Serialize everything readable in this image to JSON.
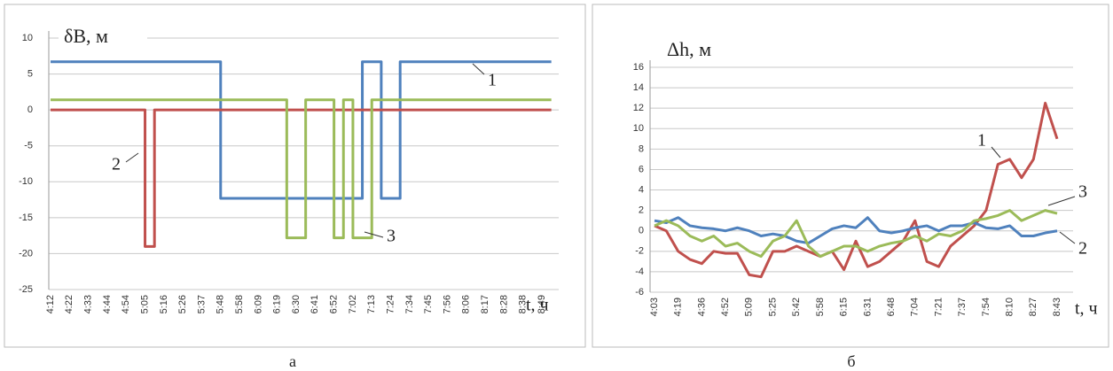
{
  "chart_data": [
    {
      "type": "line",
      "step": true,
      "title": "δB, м",
      "x_label": "t, ч",
      "caption": "а",
      "grid": true,
      "categories": [
        "4:12",
        null,
        "4:22",
        null,
        "4:33",
        null,
        "4:44",
        null,
        "4:54",
        null,
        "5:05",
        null,
        "5:16",
        null,
        "5:26",
        null,
        "5:37",
        null,
        "5:48",
        null,
        "5:58",
        null,
        "6:09",
        null,
        "6:19",
        null,
        "6:30",
        null,
        "6:41",
        null,
        "6:52",
        null,
        "7:02",
        null,
        "7:13",
        null,
        "7:24",
        null,
        "7:34",
        null,
        "7:45",
        null,
        "7:56",
        null,
        "8:06",
        null,
        "8:17",
        null,
        "8:28",
        null,
        "8:38",
        null,
        "8:49"
      ],
      "ylim": [
        -25,
        10
      ],
      "yticks": [
        -25,
        -20,
        -15,
        -10,
        -5,
        0,
        5,
        10
      ],
      "series": [
        {
          "name": "1",
          "color": "#4f81bd",
          "values": [
            6.7,
            6.7,
            6.7,
            6.7,
            6.7,
            6.7,
            6.7,
            6.7,
            6.7,
            6.7,
            6.7,
            6.7,
            6.7,
            6.7,
            6.7,
            6.7,
            6.7,
            6.7,
            -12.3,
            -12.3,
            -12.3,
            -12.3,
            -12.3,
            -12.3,
            -12.3,
            -12.3,
            -12.3,
            -12.3,
            -12.3,
            -12.3,
            -12.3,
            -12.3,
            -12.3,
            6.7,
            6.7,
            -12.3,
            -12.3,
            6.7,
            6.7,
            6.7,
            6.7,
            6.7,
            6.7,
            6.7,
            6.7,
            6.7,
            6.7,
            6.7,
            6.7,
            6.7,
            6.7,
            6.7,
            6.7
          ]
        },
        {
          "name": "2",
          "color": "#c0504d",
          "values": [
            0,
            0,
            0,
            0,
            0,
            0,
            0,
            0,
            0,
            0,
            -19,
            0,
            0,
            0,
            0,
            0,
            0,
            0,
            0,
            0,
            0,
            0,
            0,
            0,
            0,
            0,
            0,
            0,
            0,
            0,
            0,
            0,
            0,
            0,
            0,
            0,
            0,
            0,
            0,
            0,
            0,
            0,
            0,
            0,
            0,
            0,
            0,
            0,
            0,
            0,
            0,
            0,
            0
          ]
        },
        {
          "name": "3",
          "color": "#9bbb59",
          "values": [
            1.4,
            1.4,
            1.4,
            1.4,
            1.4,
            1.4,
            1.4,
            1.4,
            1.4,
            1.4,
            1.4,
            1.4,
            1.4,
            1.4,
            1.4,
            1.4,
            1.4,
            1.4,
            1.4,
            1.4,
            1.4,
            1.4,
            1.4,
            1.4,
            1.4,
            -17.8,
            -17.8,
            1.4,
            1.4,
            1.4,
            -17.8,
            1.4,
            -17.8,
            -17.8,
            1.4,
            1.4,
            1.4,
            1.4,
            1.4,
            1.4,
            1.4,
            1.4,
            1.4,
            1.4,
            1.4,
            1.4,
            1.4,
            1.4,
            1.4,
            1.4,
            1.4,
            1.4,
            1.4
          ]
        }
      ]
    },
    {
      "type": "line",
      "step": false,
      "title": "Δh, м",
      "x_label": "t, ч",
      "caption": "б",
      "grid": true,
      "categories": [
        "4:03",
        null,
        "4:19",
        null,
        "4:36",
        null,
        "4:52",
        null,
        "5:09",
        null,
        "5:25",
        null,
        "5:42",
        null,
        "5:58",
        null,
        "6:15",
        null,
        "6:31",
        null,
        "6:48",
        null,
        "7:04",
        null,
        "7:21",
        null,
        "7:37",
        null,
        "7:54",
        null,
        "8:10",
        null,
        "8:27",
        null,
        "8:43"
      ],
      "ylim": [
        -6,
        16
      ],
      "yticks": [
        -6,
        -4,
        -2,
        0,
        2,
        4,
        6,
        8,
        10,
        12,
        14,
        16
      ],
      "series": [
        {
          "name": "1",
          "color": "#c0504d",
          "values": [
            0.5,
            0,
            -2,
            -2.8,
            -3.2,
            -2,
            -2.2,
            -2.2,
            -4.3,
            -4.5,
            -2,
            -2,
            -1.5,
            -2,
            -2.5,
            -2,
            -3.8,
            -1,
            -3.5,
            -3,
            -2,
            -1,
            1,
            -3,
            -3.5,
            -1.5,
            -0.5,
            0.5,
            2,
            6.5,
            7,
            5.2,
            7,
            12.5,
            9
          ]
        },
        {
          "name": "2",
          "color": "#4f81bd",
          "values": [
            1,
            0.8,
            1.3,
            0.5,
            0.3,
            0.2,
            0,
            0.3,
            0,
            -0.5,
            -0.3,
            -0.5,
            -1,
            -1.2,
            -0.5,
            0.2,
            0.5,
            0.3,
            1.3,
            0,
            -0.2,
            0,
            0.3,
            0.5,
            0,
            0.5,
            0.5,
            0.8,
            0.3,
            0.2,
            0.5,
            -0.5,
            -0.5,
            -0.2,
            0
          ]
        },
        {
          "name": "3",
          "color": "#9bbb59",
          "values": [
            0.5,
            1,
            0.5,
            -0.5,
            -1,
            -0.5,
            -1.5,
            -1.2,
            -2,
            -2.5,
            -1,
            -0.5,
            1,
            -1.5,
            -2.5,
            -2,
            -1.5,
            -1.5,
            -2,
            -1.5,
            -1.2,
            -1,
            -0.5,
            -1,
            -0.3,
            -0.5,
            0,
            1,
            1.2,
            1.5,
            2,
            1,
            1.5,
            2,
            1.7
          ]
        }
      ]
    }
  ]
}
